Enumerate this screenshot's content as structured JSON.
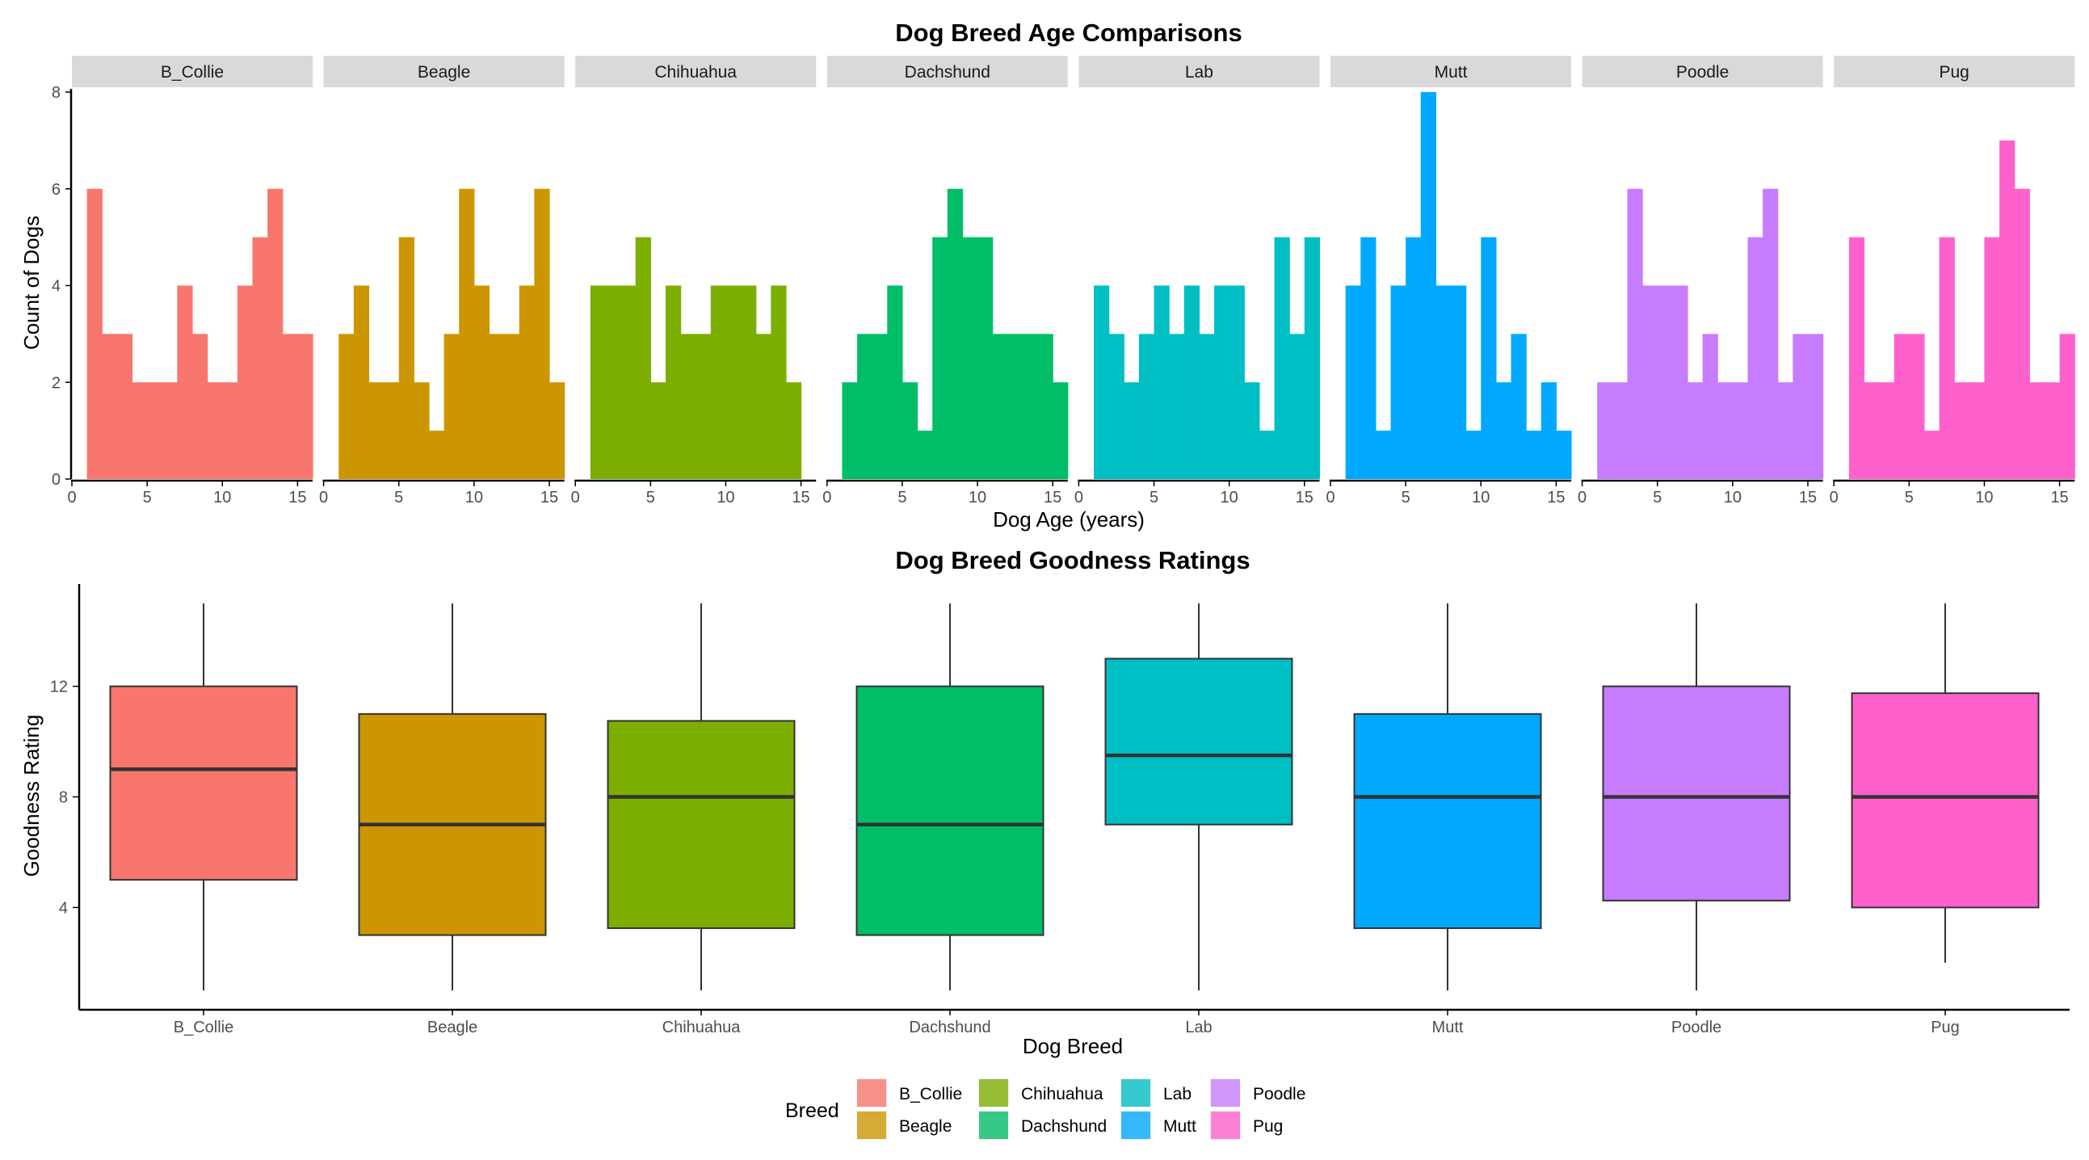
{
  "chart_data": [
    {
      "type": "bar",
      "subtype": "faceted-histogram",
      "title": "Dog Breed Age Comparisons",
      "xlabel": "Dog Age (years)",
      "ylabel": "Count of Dogs",
      "xlim": [
        0,
        16
      ],
      "ylim": [
        0,
        8
      ],
      "x_ticks": [
        "0",
        "5",
        "10",
        "15"
      ],
      "y_ticks": [
        "0",
        "2",
        "4",
        "6",
        "8"
      ],
      "grid": false,
      "bin_width": 1,
      "bin_start": 1,
      "facets": [
        {
          "name": "B_Collie",
          "color": "#F8766D",
          "counts": [
            6,
            3,
            3,
            2,
            2,
            2,
            4,
            3,
            2,
            2,
            4,
            5,
            6,
            3,
            3
          ]
        },
        {
          "name": "Beagle",
          "color": "#CD9600",
          "counts": [
            3,
            4,
            2,
            2,
            5,
            2,
            1,
            3,
            6,
            4,
            3,
            3,
            4,
            6,
            2
          ]
        },
        {
          "name": "Chihuahua",
          "color": "#7CAE00",
          "counts": [
            4,
            4,
            4,
            5,
            2,
            4,
            3,
            3,
            4,
            4,
            4,
            3,
            4,
            2
          ]
        },
        {
          "name": "Dachshund",
          "color": "#00BE67",
          "counts": [
            2,
            3,
            3,
            4,
            2,
            1,
            5,
            6,
            5,
            5,
            3,
            3,
            3,
            3,
            2
          ]
        },
        {
          "name": "Lab",
          "color": "#00BFC4",
          "counts": [
            4,
            3,
            2,
            3,
            4,
            3,
            4,
            3,
            4,
            4,
            2,
            1,
            5,
            3,
            5
          ]
        },
        {
          "name": "Mutt",
          "color": "#00A9FF",
          "counts": [
            4,
            5,
            1,
            4,
            5,
            8,
            4,
            4,
            1,
            5,
            2,
            3,
            1,
            2,
            1
          ]
        },
        {
          "name": "Poodle",
          "color": "#C77CFF",
          "counts": [
            2,
            2,
            6,
            4,
            4,
            4,
            2,
            3,
            2,
            2,
            5,
            6,
            2,
            3,
            3
          ]
        },
        {
          "name": "Pug",
          "color": "#FF61CC",
          "counts": [
            5,
            2,
            2,
            3,
            3,
            1,
            5,
            2,
            2,
            5,
            7,
            6,
            2,
            2,
            3
          ]
        }
      ]
    },
    {
      "type": "box",
      "title": "Dog Breed Goodness Ratings",
      "xlabel": "Dog Breed",
      "ylabel": "Goodness Rating",
      "ylim": [
        0.3,
        15.7
      ],
      "y_ticks": [
        "4",
        "8",
        "12"
      ],
      "grid": false,
      "categories": [
        "B_Collie",
        "Beagle",
        "Chihuahua",
        "Dachshund",
        "Lab",
        "Mutt",
        "Poodle",
        "Pug"
      ],
      "boxes": [
        {
          "name": "B_Collie",
          "color": "#F8766D",
          "min": 1,
          "q1": 5,
          "median": 9,
          "q3": 12,
          "max": 15
        },
        {
          "name": "Beagle",
          "color": "#CD9600",
          "min": 1,
          "q1": 3,
          "median": 7,
          "q3": 11,
          "max": 15
        },
        {
          "name": "Chihuahua",
          "color": "#7CAE00",
          "min": 1,
          "q1": 3.25,
          "median": 8,
          "q3": 10.75,
          "max": 15
        },
        {
          "name": "Dachshund",
          "color": "#00BE67",
          "min": 1,
          "q1": 3,
          "median": 7,
          "q3": 12,
          "max": 15
        },
        {
          "name": "Lab",
          "color": "#00BFC4",
          "min": 1,
          "q1": 7,
          "median": 9.5,
          "q3": 13,
          "max": 15
        },
        {
          "name": "Mutt",
          "color": "#00A9FF",
          "min": 1,
          "q1": 3.25,
          "median": 8,
          "q3": 11,
          "max": 15
        },
        {
          "name": "Poodle",
          "color": "#C77CFF",
          "min": 1,
          "q1": 4.25,
          "median": 8,
          "q3": 12,
          "max": 15
        },
        {
          "name": "Pug",
          "color": "#FF61CC",
          "min": 2,
          "q1": 4,
          "median": 8,
          "q3": 11.75,
          "max": 15
        }
      ]
    }
  ],
  "legend": {
    "title": "Breed",
    "placement": "bottom",
    "items": [
      "B_Collie",
      "Beagle",
      "Chihuahua",
      "Dachshund",
      "Lab",
      "Mutt",
      "Poodle",
      "Pug"
    ],
    "colors": [
      "#F8766D",
      "#CD9600",
      "#7CAE00",
      "#00BE67",
      "#00BFC4",
      "#00A9FF",
      "#C77CFF",
      "#FF61CC"
    ]
  }
}
